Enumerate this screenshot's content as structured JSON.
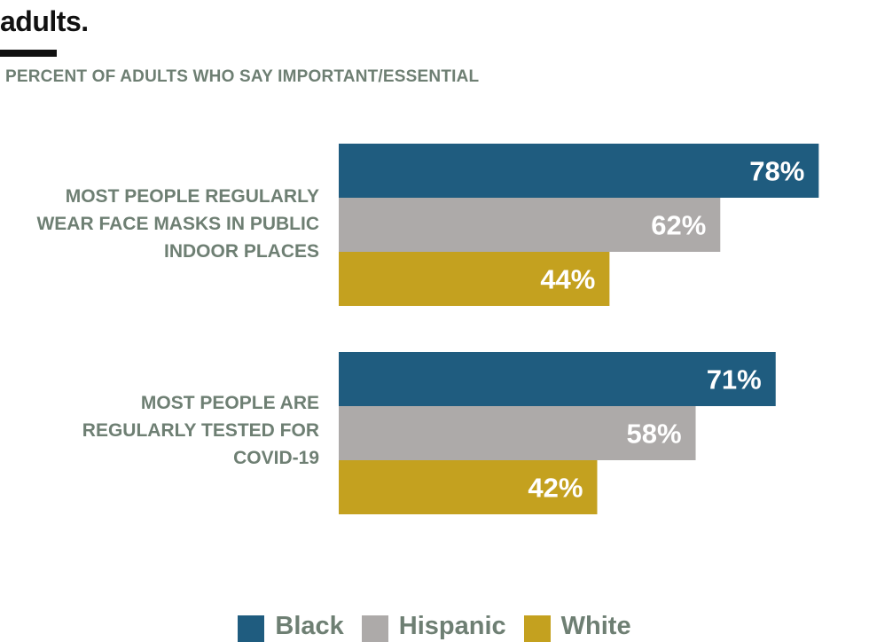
{
  "title": "adults.",
  "subtitle": "PERCENT OF ADULTS WHO SAY IMPORTANT/ESSENTIAL",
  "colors": {
    "Black": "#1f5c7f",
    "Hispanic": "#adaaa9",
    "White": "#c4a11f",
    "label_text": "#6e7f73",
    "value_text": "#ffffff"
  },
  "chart_data": {
    "type": "bar",
    "orientation": "horizontal",
    "title": "adults.",
    "subtitle": "PERCENT OF ADULTS WHO SAY IMPORTANT/ESSENTIAL",
    "categories": [
      "MOST PEOPLE REGULARLY WEAR FACE MASKS IN PUBLIC INDOOR PLACES",
      "MOST PEOPLE ARE REGULARLY TESTED FOR COVID-19"
    ],
    "category_lines": [
      [
        "MOST PEOPLE REGULARLY",
        "WEAR FACE MASKS IN PUBLIC",
        "INDOOR PLACES"
      ],
      [
        "MOST PEOPLE ARE",
        "REGULARLY TESTED FOR",
        "COVID-19"
      ]
    ],
    "series": [
      {
        "name": "Black",
        "values": [
          78,
          71
        ]
      },
      {
        "name": "Hispanic",
        "values": [
          62,
          58
        ]
      },
      {
        "name": "White",
        "values": [
          44,
          42
        ]
      }
    ],
    "value_labels": [
      [
        "78%",
        "71%"
      ],
      [
        "62%",
        "58%"
      ],
      [
        "44%",
        "42%"
      ]
    ],
    "xlim": [
      0,
      100
    ],
    "xlabel": "",
    "ylabel": "",
    "grid": false,
    "legend": "bottom-center"
  },
  "legend": {
    "items": [
      {
        "label": "Black",
        "color": "#1f5c7f"
      },
      {
        "label": "Hispanic",
        "color": "#adaaa9"
      },
      {
        "label": "White",
        "color": "#c4a11f"
      }
    ]
  }
}
